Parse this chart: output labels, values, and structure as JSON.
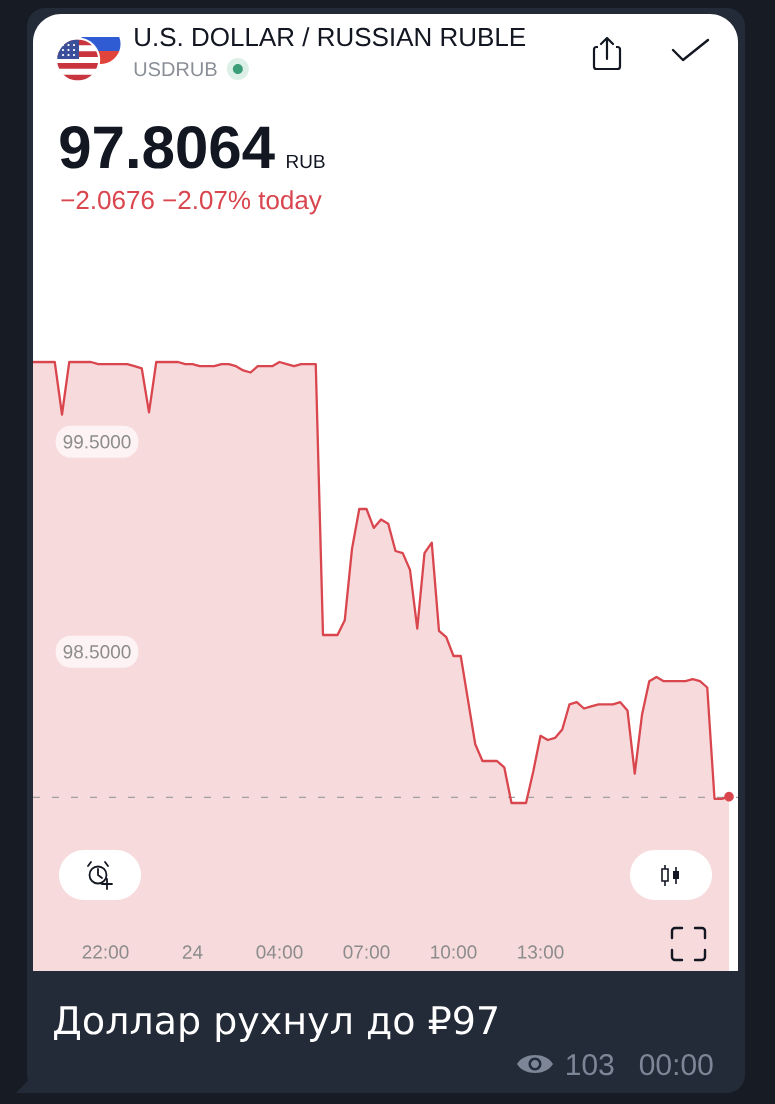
{
  "chart_data": {
    "type": "area",
    "title": "U.S. DOLLAR / RUSSIAN RUBLE",
    "subtitle": "USDRUB",
    "annotations": [
      "97.8064",
      "RUB",
      "−2.0676 −2.07% today",
      "Доллар рухнул до ₽97",
      "103",
      "00:00"
    ],
    "categories": [
      null,
      null,
      null,
      null,
      null,
      null,
      null,
      null,
      null,
      null,
      "22:00",
      null,
      null,
      null,
      null,
      null,
      null,
      null,
      null,
      null,
      null,
      null,
      "24",
      null,
      null,
      null,
      null,
      null,
      null,
      null,
      null,
      null,
      null,
      null,
      "04:00",
      null,
      null,
      null,
      null,
      null,
      null,
      null,
      null,
      null,
      null,
      null,
      "07:00",
      null,
      null,
      null,
      null,
      null,
      null,
      null,
      null,
      null,
      null,
      null,
      "10:00",
      null,
      null,
      null,
      null,
      null,
      null,
      null,
      null,
      null,
      null,
      null,
      "13:00",
      null,
      null,
      null,
      null,
      null,
      null,
      null,
      null,
      null,
      null,
      null,
      null,
      null,
      null,
      null,
      null,
      null,
      null,
      null,
      null,
      null,
      null,
      null,
      null,
      null,
      null
    ],
    "ylim": [
      96.98,
      100.2
    ],
    "yticks": [
      {
        "value": 99.5,
        "label": "99.5000"
      },
      {
        "value": 98.5,
        "label": "98.5000"
      }
    ],
    "series": [
      {
        "color": "#d9464e",
        "values": [
          99.88,
          99.88,
          99.88,
          99.88,
          99.63,
          99.88,
          99.88,
          99.88,
          99.88,
          99.87,
          99.87,
          99.87,
          99.87,
          99.87,
          99.86,
          99.85,
          99.64,
          99.88,
          99.88,
          99.88,
          99.88,
          99.87,
          99.87,
          99.86,
          99.86,
          99.86,
          99.87,
          99.87,
          99.86,
          99.84,
          99.83,
          99.86,
          99.86,
          99.86,
          99.88,
          99.87,
          99.86,
          99.87,
          99.87,
          99.87,
          98.58,
          98.58,
          98.58,
          98.65,
          98.99,
          99.18,
          99.18,
          99.09,
          99.13,
          99.11,
          98.98,
          98.97,
          98.89,
          98.61,
          98.97,
          99.02,
          98.6,
          98.57,
          98.48,
          98.48,
          98.27,
          98.06,
          97.98,
          97.98,
          97.98,
          97.95,
          97.78,
          97.78,
          97.78,
          97.93,
          98.1,
          98.08,
          98.09,
          98.13,
          98.25,
          98.26,
          98.23,
          98.24,
          98.25,
          98.25,
          98.25,
          98.26,
          98.22,
          97.92,
          98.2,
          98.36,
          98.38,
          98.36,
          98.36,
          98.36,
          98.36,
          98.37,
          98.36,
          98.33,
          97.8,
          97.8,
          97.81
        ]
      },
      {
        "type": "scatter",
        "color": "#d9464e",
        "marker": "circle",
        "values": [
          null,
          null,
          null,
          null,
          null,
          null,
          null,
          null,
          null,
          null,
          null,
          null,
          null,
          null,
          null,
          null,
          null,
          null,
          null,
          null,
          null,
          null,
          null,
          null,
          null,
          null,
          null,
          null,
          null,
          null,
          null,
          null,
          null,
          null,
          null,
          null,
          null,
          null,
          null,
          null,
          null,
          null,
          null,
          null,
          null,
          null,
          null,
          null,
          null,
          null,
          null,
          null,
          null,
          null,
          null,
          null,
          null,
          null,
          null,
          null,
          null,
          null,
          null,
          null,
          null,
          null,
          null,
          null,
          null,
          null,
          null,
          null,
          null,
          null,
          null,
          null,
          null,
          null,
          null,
          null,
          null,
          null,
          null,
          null,
          null,
          null,
          null,
          null,
          null,
          null,
          null,
          null,
          null,
          null,
          null,
          null,
          97.81
        ]
      }
    ],
    "ref_lines": [
      {
        "axis": "y",
        "value": 97.8064,
        "color": "#a0a0a0",
        "line_style": "dashed"
      }
    ]
  }
}
